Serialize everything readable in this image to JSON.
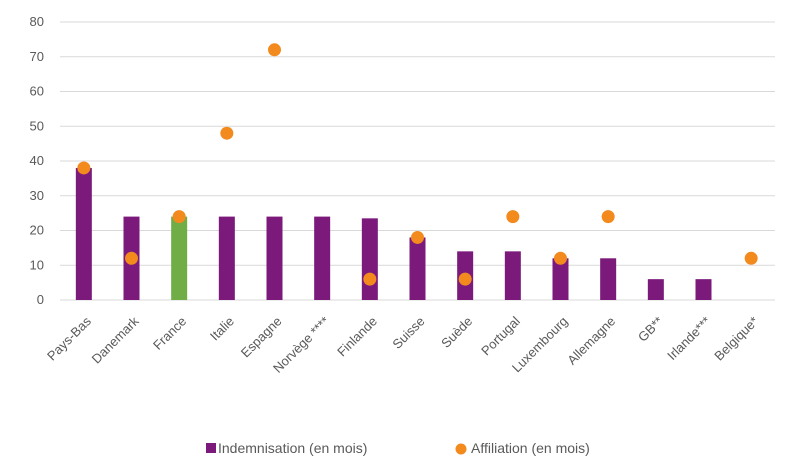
{
  "chart_data": {
    "type": "bar",
    "categories": [
      "Pays-Bas",
      "Danemark",
      "France",
      "Italie",
      "Espagne",
      "Norvège ****",
      "Finlande",
      "Suisse",
      "Suède",
      "Portugal",
      "Luxembourg",
      "Allemagne",
      "GB**",
      "Irlande***",
      "Belgique*"
    ],
    "series": [
      {
        "name": "Indemnisation (en mois)",
        "kind": "bar",
        "color": "#7b1a7b",
        "values": [
          38,
          24,
          24,
          24,
          24,
          24,
          23.5,
          18,
          14,
          14,
          12,
          12,
          6,
          6,
          null
        ],
        "highlight": {
          "index": 2,
          "color": "#70ad47"
        }
      },
      {
        "name": "Affiliation (en mois)",
        "kind": "scatter",
        "color": "#f28a1e",
        "values": [
          38,
          12,
          24,
          48,
          72,
          null,
          6,
          18,
          6,
          24,
          12,
          24,
          null,
          null,
          12
        ]
      }
    ],
    "ylim": [
      0,
      80
    ],
    "yticks": [
      0,
      10,
      20,
      30,
      40,
      50,
      60,
      70,
      80
    ],
    "grid": true,
    "legend_position": "bottom",
    "title": "",
    "xlabel": "",
    "ylabel": ""
  }
}
